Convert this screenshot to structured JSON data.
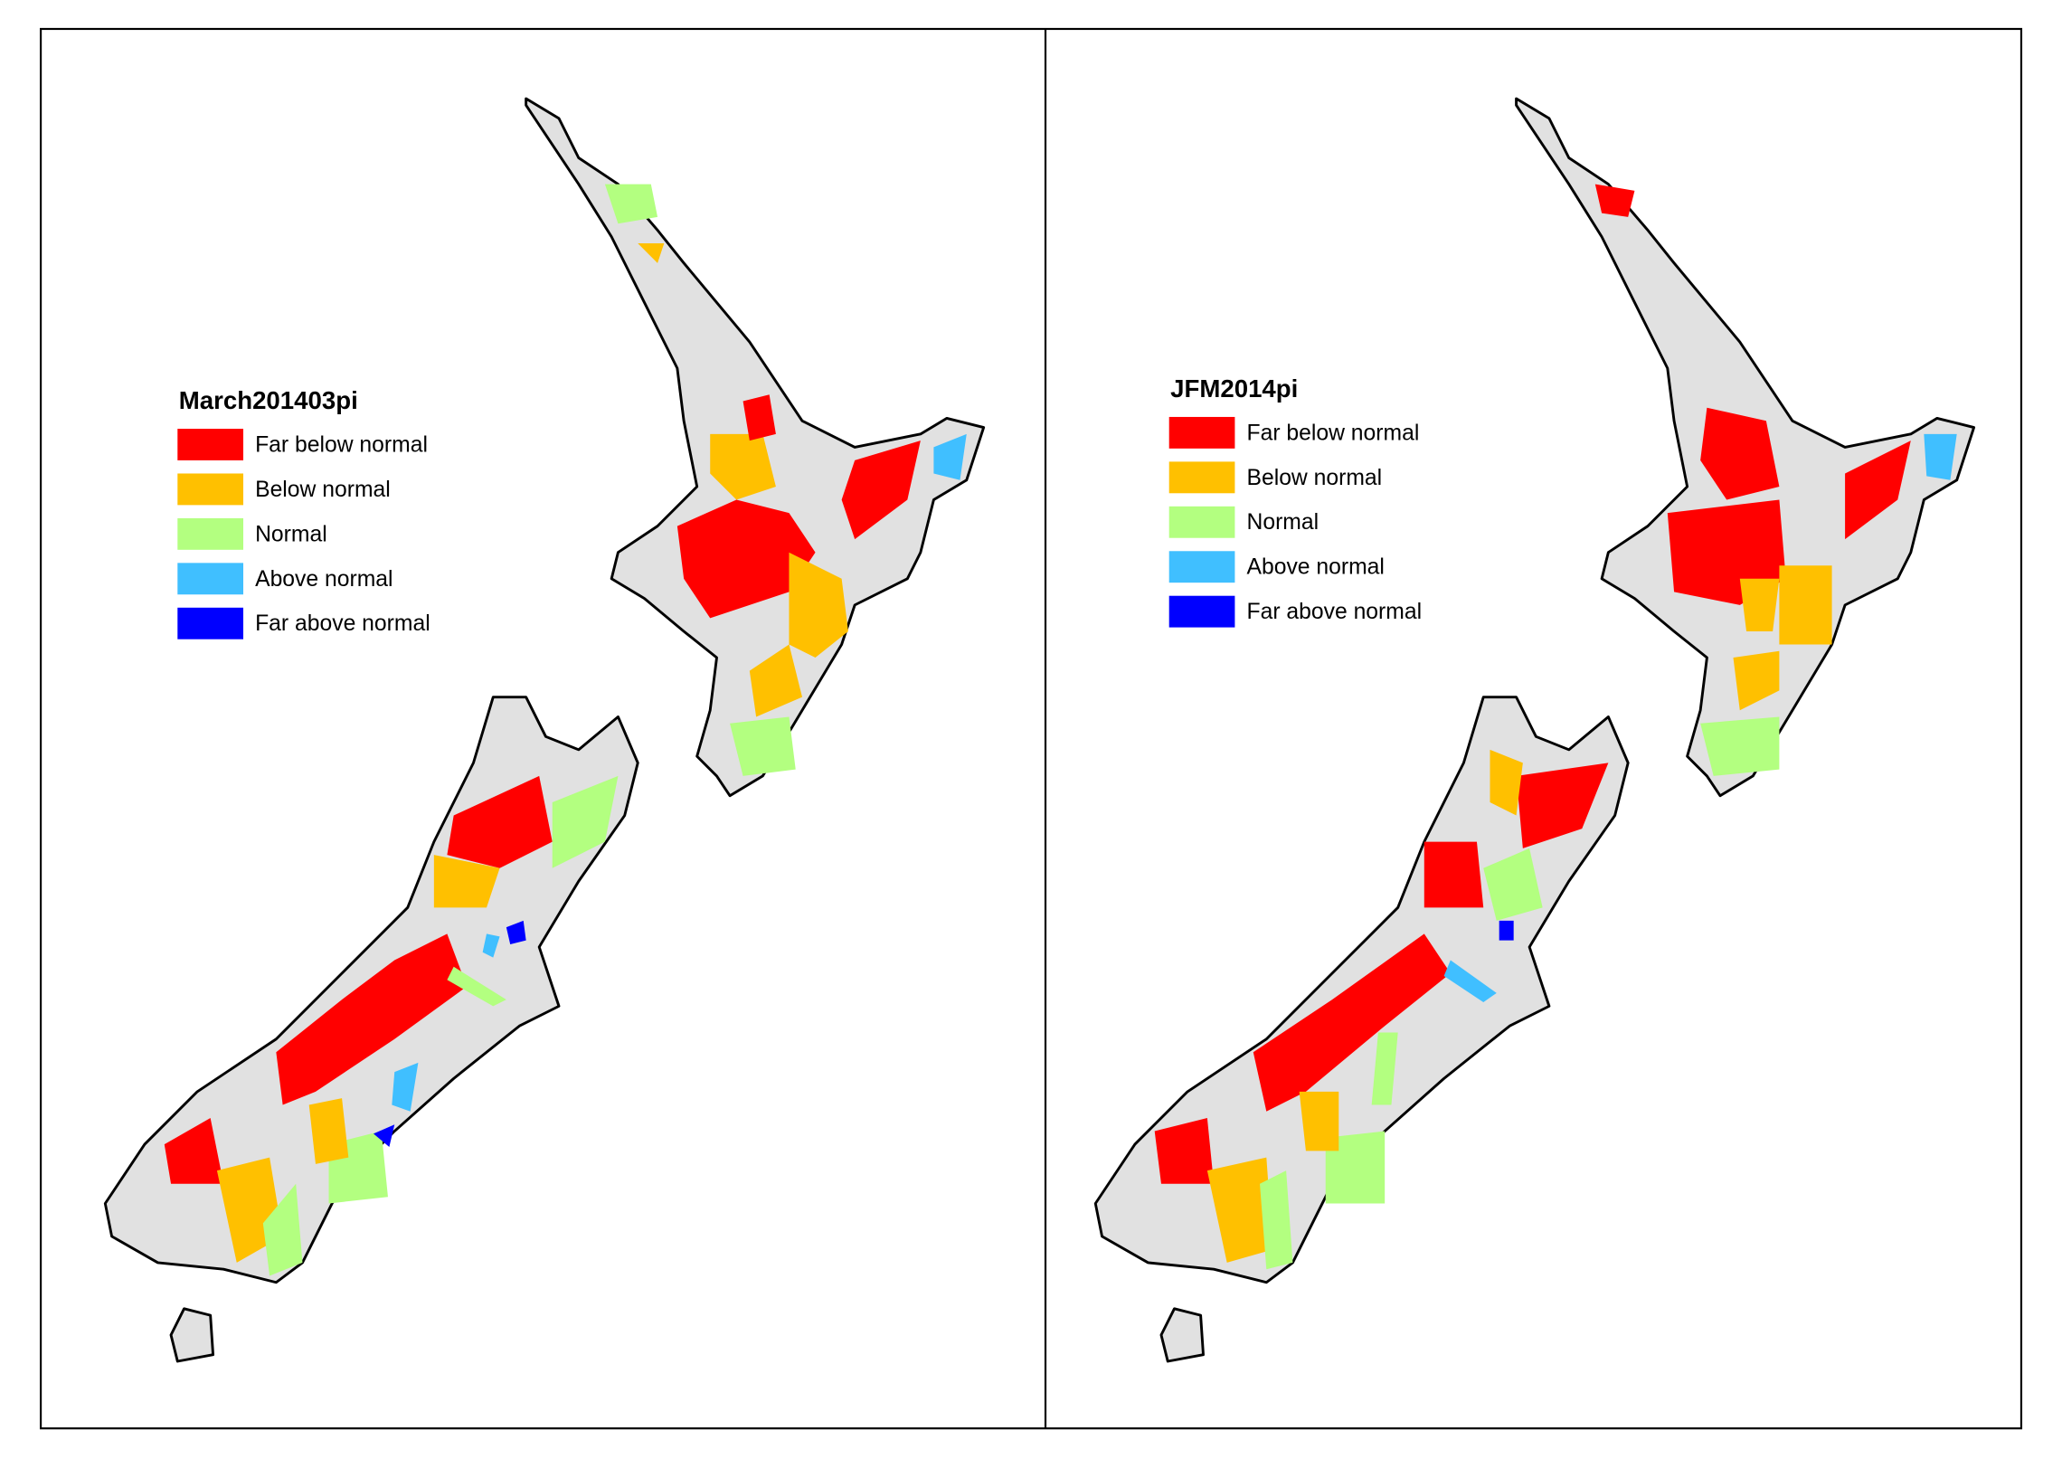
{
  "panels": [
    {
      "legend": {
        "title": "March201403pi",
        "items": [
          {
            "label": "Far below normal",
            "color": "#ff0000"
          },
          {
            "label": "Below normal",
            "color": "#ffc000"
          },
          {
            "label": "Normal",
            "color": "#b3ff80"
          },
          {
            "label": "Above normal",
            "color": "#40bfff"
          },
          {
            "label": "Far above normal",
            "color": "#0000ff"
          }
        ]
      }
    },
    {
      "legend": {
        "title": "JFM2014pi",
        "items": [
          {
            "label": "Far below normal",
            "color": "#ff0000"
          },
          {
            "label": "Below normal",
            "color": "#ffc000"
          },
          {
            "label": "Normal",
            "color": "#b3ff80"
          },
          {
            "label": "Above normal",
            "color": "#40bfff"
          },
          {
            "label": "Far above normal",
            "color": "#0000ff"
          }
        ]
      }
    }
  ]
}
